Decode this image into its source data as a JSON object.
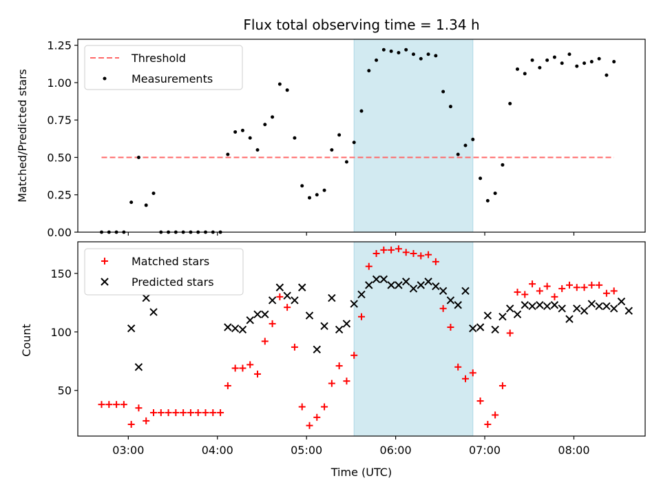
{
  "chart_data": [
    {
      "type": "scatter",
      "title": "Flux total observing time = 1.34 h",
      "xlabel": "",
      "ylabel": "Matched/Predicted stars",
      "xlim": [
        "02:26",
        "08:48"
      ],
      "ylim": [
        0.0,
        1.29
      ],
      "yticks": [
        "0.00",
        "0.25",
        "0.50",
        "0.75",
        "1.00",
        "1.25"
      ],
      "ytick_values": [
        0.0,
        0.25,
        0.5,
        0.75,
        1.0,
        1.25
      ],
      "xticks": [
        "03:00",
        "04:00",
        "05:00",
        "06:00",
        "07:00",
        "08:00"
      ],
      "xtick_labels_shown": false,
      "legend": {
        "placement": "top-left",
        "entries": [
          "Threshold",
          "Measurements"
        ]
      },
      "shaded_span": {
        "from": "05:32",
        "to": "06:52",
        "color": "#add8e6"
      },
      "threshold": {
        "name": "Threshold",
        "value": 0.5,
        "from": "02:42",
        "to": "08:27",
        "color": "#ff6666",
        "style": "dashed"
      },
      "series": [
        {
          "name": "Measurements",
          "color": "#000000",
          "marker": "dot",
          "points": [
            [
              "02:42",
              0.0
            ],
            [
              "02:47",
              0.0
            ],
            [
              "02:52",
              0.0
            ],
            [
              "02:57",
              0.0
            ],
            [
              "03:02",
              0.2
            ],
            [
              "03:07",
              0.5
            ],
            [
              "03:12",
              0.18
            ],
            [
              "03:17",
              0.26
            ],
            [
              "03:22",
              0.0
            ],
            [
              "03:27",
              0.0
            ],
            [
              "03:32",
              0.0
            ],
            [
              "03:37",
              0.0
            ],
            [
              "03:42",
              0.0
            ],
            [
              "03:47",
              0.0
            ],
            [
              "03:52",
              0.0
            ],
            [
              "03:57",
              0.0
            ],
            [
              "04:02",
              0.0
            ],
            [
              "04:07",
              0.52
            ],
            [
              "04:12",
              0.67
            ],
            [
              "04:17",
              0.68
            ],
            [
              "04:22",
              0.63
            ],
            [
              "04:27",
              0.55
            ],
            [
              "04:32",
              0.72
            ],
            [
              "04:37",
              0.77
            ],
            [
              "04:42",
              0.99
            ],
            [
              "04:47",
              0.95
            ],
            [
              "04:52",
              0.63
            ],
            [
              "04:57",
              0.31
            ],
            [
              "05:02",
              0.23
            ],
            [
              "05:07",
              0.25
            ],
            [
              "05:12",
              0.28
            ],
            [
              "05:17",
              0.55
            ],
            [
              "05:22",
              0.65
            ],
            [
              "05:27",
              0.47
            ],
            [
              "05:32",
              0.6
            ],
            [
              "05:37",
              0.81
            ],
            [
              "05:42",
              1.08
            ],
            [
              "05:47",
              1.15
            ],
            [
              "05:52",
              1.22
            ],
            [
              "05:57",
              1.21
            ],
            [
              "06:02",
              1.2
            ],
            [
              "06:07",
              1.22
            ],
            [
              "06:12",
              1.19
            ],
            [
              "06:17",
              1.16
            ],
            [
              "06:22",
              1.19
            ],
            [
              "06:27",
              1.18
            ],
            [
              "06:32",
              0.94
            ],
            [
              "06:37",
              0.84
            ],
            [
              "06:42",
              0.52
            ],
            [
              "06:47",
              0.58
            ],
            [
              "06:52",
              0.62
            ],
            [
              "06:57",
              0.36
            ],
            [
              "07:02",
              0.21
            ],
            [
              "07:07",
              0.26
            ],
            [
              "07:12",
              0.45
            ],
            [
              "07:17",
              0.86
            ],
            [
              "07:22",
              1.09
            ],
            [
              "07:27",
              1.06
            ],
            [
              "07:32",
              1.15
            ],
            [
              "07:37",
              1.1
            ],
            [
              "07:42",
              1.15
            ],
            [
              "07:47",
              1.17
            ],
            [
              "07:52",
              1.13
            ],
            [
              "07:57",
              1.19
            ],
            [
              "08:02",
              1.11
            ],
            [
              "08:07",
              1.13
            ],
            [
              "08:12",
              1.14
            ],
            [
              "08:17",
              1.16
            ],
            [
              "08:22",
              1.05
            ],
            [
              "08:27",
              1.14
            ]
          ]
        }
      ]
    },
    {
      "type": "scatter",
      "title": "",
      "xlabel": "Time (UTC)",
      "ylabel": "Count",
      "xlim": [
        "02:26",
        "08:48"
      ],
      "ylim": [
        11,
        177
      ],
      "yticks": [
        "50",
        "100",
        "150"
      ],
      "ytick_values": [
        50,
        100,
        150
      ],
      "xticks": [
        "03:00",
        "04:00",
        "05:00",
        "06:00",
        "07:00",
        "08:00"
      ],
      "legend": {
        "placement": "top-left",
        "entries": [
          "Matched stars",
          "Predicted stars"
        ]
      },
      "shaded_span": {
        "from": "05:32",
        "to": "06:52",
        "color": "#add8e6"
      },
      "series": [
        {
          "name": "Matched stars",
          "color": "#ff0000",
          "marker": "plus",
          "points": [
            [
              "02:42",
              38
            ],
            [
              "02:47",
              38
            ],
            [
              "02:52",
              38
            ],
            [
              "02:57",
              38
            ],
            [
              "03:02",
              21
            ],
            [
              "03:07",
              35
            ],
            [
              "03:12",
              24
            ],
            [
              "03:17",
              31
            ],
            [
              "03:22",
              31
            ],
            [
              "03:27",
              31
            ],
            [
              "03:32",
              31
            ],
            [
              "03:37",
              31
            ],
            [
              "03:42",
              31
            ],
            [
              "03:47",
              31
            ],
            [
              "03:52",
              31
            ],
            [
              "03:57",
              31
            ],
            [
              "04:02",
              31
            ],
            [
              "04:07",
              54
            ],
            [
              "04:12",
              69
            ],
            [
              "04:17",
              69
            ],
            [
              "04:22",
              72
            ],
            [
              "04:27",
              64
            ],
            [
              "04:32",
              92
            ],
            [
              "04:37",
              107
            ],
            [
              "04:42",
              130
            ],
            [
              "04:47",
              121
            ],
            [
              "04:52",
              87
            ],
            [
              "04:57",
              36
            ],
            [
              "05:02",
              20
            ],
            [
              "05:07",
              27
            ],
            [
              "05:12",
              36
            ],
            [
              "05:17",
              56
            ],
            [
              "05:22",
              71
            ],
            [
              "05:27",
              58
            ],
            [
              "05:32",
              80
            ],
            [
              "05:37",
              113
            ],
            [
              "05:42",
              156
            ],
            [
              "05:47",
              167
            ],
            [
              "05:52",
              170
            ],
            [
              "05:57",
              170
            ],
            [
              "06:02",
              171
            ],
            [
              "06:07",
              168
            ],
            [
              "06:12",
              167
            ],
            [
              "06:17",
              165
            ],
            [
              "06:22",
              166
            ],
            [
              "06:27",
              160
            ],
            [
              "06:32",
              120
            ],
            [
              "06:37",
              104
            ],
            [
              "06:42",
              70
            ],
            [
              "06:47",
              60
            ],
            [
              "06:52",
              65
            ],
            [
              "06:57",
              41
            ],
            [
              "07:02",
              21
            ],
            [
              "07:07",
              29
            ],
            [
              "07:12",
              54
            ],
            [
              "07:17",
              99
            ],
            [
              "07:22",
              134
            ],
            [
              "07:27",
              132
            ],
            [
              "07:32",
              141
            ],
            [
              "07:37",
              135
            ],
            [
              "07:42",
              139
            ],
            [
              "07:47",
              130
            ],
            [
              "07:52",
              137
            ],
            [
              "07:57",
              140
            ],
            [
              "08:02",
              138
            ],
            [
              "08:07",
              138
            ],
            [
              "08:12",
              140
            ],
            [
              "08:17",
              140
            ],
            [
              "08:22",
              133
            ],
            [
              "08:27",
              135
            ]
          ]
        },
        {
          "name": "Predicted stars",
          "color": "#000000",
          "marker": "x",
          "points": [
            [
              "03:02",
              103
            ],
            [
              "03:07",
              70
            ],
            [
              "03:12",
              129
            ],
            [
              "03:17",
              117
            ],
            [
              "04:07",
              104
            ],
            [
              "04:12",
              103
            ],
            [
              "04:17",
              102
            ],
            [
              "04:22",
              110
            ],
            [
              "04:27",
              115
            ],
            [
              "04:32",
              115
            ],
            [
              "04:37",
              127
            ],
            [
              "04:42",
              138
            ],
            [
              "04:47",
              131
            ],
            [
              "04:52",
              127
            ],
            [
              "04:57",
              138
            ],
            [
              "05:02",
              114
            ],
            [
              "05:07",
              85
            ],
            [
              "05:12",
              105
            ],
            [
              "05:17",
              129
            ],
            [
              "05:22",
              102
            ],
            [
              "05:27",
              107
            ],
            [
              "05:32",
              124
            ],
            [
              "05:37",
              132
            ],
            [
              "05:42",
              140
            ],
            [
              "05:47",
              145
            ],
            [
              "05:52",
              145
            ],
            [
              "05:57",
              140
            ],
            [
              "06:02",
              140
            ],
            [
              "06:07",
              143
            ],
            [
              "06:12",
              137
            ],
            [
              "06:17",
              140
            ],
            [
              "06:22",
              143
            ],
            [
              "06:27",
              139
            ],
            [
              "06:32",
              135
            ],
            [
              "06:37",
              127
            ],
            [
              "06:42",
              123
            ],
            [
              "06:47",
              135
            ],
            [
              "06:52",
              103
            ],
            [
              "06:57",
              104
            ],
            [
              "07:02",
              114
            ],
            [
              "07:07",
              102
            ],
            [
              "07:12",
              113
            ],
            [
              "07:17",
              120
            ],
            [
              "07:22",
              115
            ],
            [
              "07:27",
              123
            ],
            [
              "07:32",
              122
            ],
            [
              "07:37",
              123
            ],
            [
              "07:42",
              122
            ],
            [
              "07:47",
              123
            ],
            [
              "07:52",
              120
            ],
            [
              "07:57",
              111
            ],
            [
              "08:02",
              120
            ],
            [
              "08:07",
              118
            ],
            [
              "08:12",
              124
            ],
            [
              "08:17",
              122
            ],
            [
              "08:22",
              122
            ],
            [
              "08:27",
              120
            ],
            [
              "08:32",
              126
            ],
            [
              "08:37",
              118
            ]
          ]
        }
      ]
    }
  ]
}
